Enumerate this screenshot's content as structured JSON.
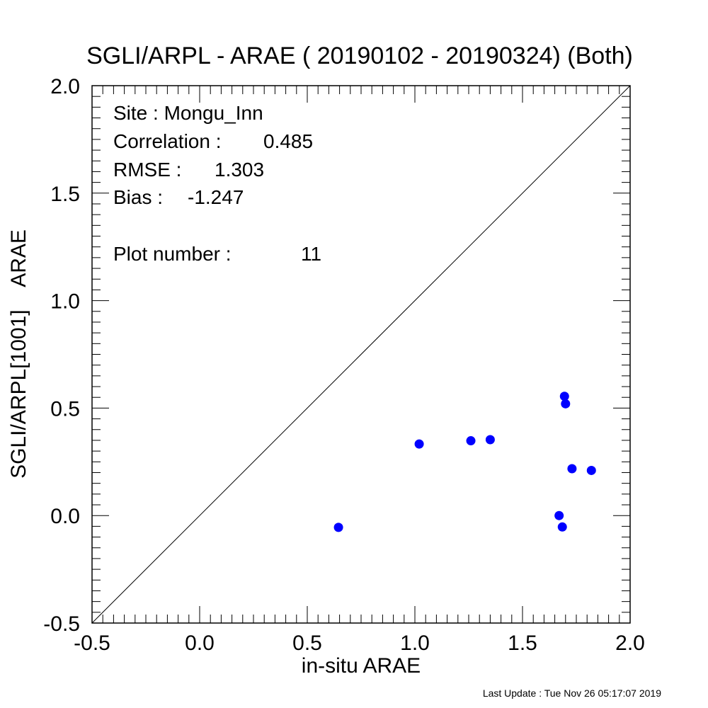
{
  "chart_data": {
    "type": "scatter",
    "title": "SGLI/ARPL - ARAE ( 20190102 - 20190324) (Both)",
    "xlabel": "in-situ ARAE",
    "ylabel": "SGLI/ARPL[1001]    ARAE",
    "xlim": [
      -0.5,
      2.0
    ],
    "ylim": [
      -0.5,
      2.0
    ],
    "xticks": [
      "-0.5",
      "0.0",
      "0.5",
      "1.0",
      "1.5",
      "2.0"
    ],
    "yticks": [
      "-0.5",
      "0.0",
      "0.5",
      "1.0",
      "1.5",
      "2.0"
    ],
    "reference_line": "1:1",
    "grid": false,
    "marker_color": "#0000ff",
    "points": [
      {
        "x": 0.645,
        "y": -0.055
      },
      {
        "x": 1.02,
        "y": 0.333
      },
      {
        "x": 1.26,
        "y": 0.348
      },
      {
        "x": 1.35,
        "y": 0.353
      },
      {
        "x": 1.67,
        "y": 0.0
      },
      {
        "x": 1.685,
        "y": -0.053
      },
      {
        "x": 1.695,
        "y": 0.555
      },
      {
        "x": 1.7,
        "y": 0.52
      },
      {
        "x": 1.73,
        "y": 0.218
      },
      {
        "x": 1.82,
        "y": 0.21
      }
    ],
    "annotations": {
      "site": "Site : Mongu_Inn",
      "correlation_label": "Correlation :",
      "correlation_value": "0.485",
      "rmse_label": "RMSE :",
      "rmse_value": "1.303",
      "bias_label": "Bias :",
      "bias_value": "-1.247",
      "plot_number_label": "Plot number :",
      "plot_number_value": "11"
    }
  },
  "footer": "Last Update : Tue Nov 26 05:17:07 2019"
}
